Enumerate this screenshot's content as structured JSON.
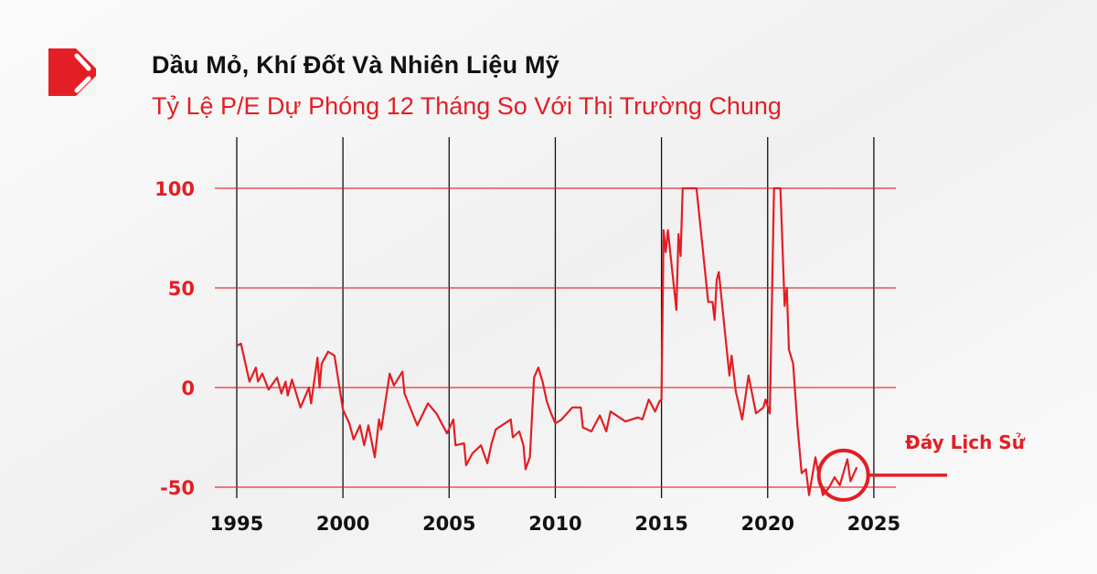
{
  "header": {
    "title": "Dầu Mỏ, Khí Đốt Và Nhiên Liệu Mỹ",
    "subtitle": "Tỷ Lệ P/E Dự Phóng 12 Tháng So Với Thị Trường Chung",
    "logo_icon": "red-square-slash-logo"
  },
  "colors": {
    "accent": "#e31e24",
    "text": "#111111",
    "background": "#f4f4f4"
  },
  "chart_data": {
    "type": "line",
    "title": "Dầu Mỏ, Khí Đốt Và Nhiên Liệu Mỹ",
    "subtitle": "Tỷ Lệ P/E Dự Phóng 12 Tháng So Với Thị Trường Chung",
    "xlabel": "",
    "ylabel": "",
    "xlim": [
      1994,
      2026
    ],
    "ylim": [
      -55,
      100
    ],
    "x_ticks": [
      "1995",
      "2000",
      "2005",
      "2010",
      "2015",
      "2020",
      "2025"
    ],
    "y_ticks": [
      "100",
      "50",
      "0",
      "-50"
    ],
    "grid": "horizontal red at y ticks, vertical black at x ticks",
    "annotation": {
      "label": "Đáy Lịch Sử",
      "x": 2023.7,
      "y": -44
    },
    "series": [
      {
        "color": "#e31e24",
        "points": [
          [
            1995.0,
            21
          ],
          [
            1995.2,
            22
          ],
          [
            1995.6,
            3
          ],
          [
            1995.9,
            10
          ],
          [
            1996.0,
            3
          ],
          [
            1996.2,
            7
          ],
          [
            1996.5,
            -1
          ],
          [
            1996.9,
            5
          ],
          [
            1997.1,
            -3
          ],
          [
            1997.3,
            3
          ],
          [
            1997.4,
            -4
          ],
          [
            1997.6,
            4
          ],
          [
            1998.0,
            -10
          ],
          [
            1998.4,
            0
          ],
          [
            1998.5,
            -8
          ],
          [
            1998.8,
            15
          ],
          [
            1998.9,
            0
          ],
          [
            1999.0,
            12
          ],
          [
            1999.3,
            18
          ],
          [
            1999.6,
            16
          ],
          [
            2000.0,
            -11
          ],
          [
            2000.3,
            -18
          ],
          [
            2000.5,
            -26
          ],
          [
            2000.8,
            -19
          ],
          [
            2001.0,
            -29
          ],
          [
            2001.2,
            -19
          ],
          [
            2001.5,
            -35
          ],
          [
            2001.7,
            -16
          ],
          [
            2001.8,
            -21
          ],
          [
            2002.2,
            7
          ],
          [
            2002.4,
            1
          ],
          [
            2002.8,
            8
          ],
          [
            2002.9,
            -3
          ],
          [
            2003.2,
            -11
          ],
          [
            2003.5,
            -19
          ],
          [
            2004.0,
            -8
          ],
          [
            2004.4,
            -13
          ],
          [
            2004.9,
            -23
          ],
          [
            2005.2,
            -16
          ],
          [
            2005.3,
            -29
          ],
          [
            2005.7,
            -28
          ],
          [
            2005.8,
            -39
          ],
          [
            2006.1,
            -33
          ],
          [
            2006.5,
            -29
          ],
          [
            2006.8,
            -38
          ],
          [
            2007.0,
            -28
          ],
          [
            2007.2,
            -21
          ],
          [
            2007.9,
            -16
          ],
          [
            2008.0,
            -25
          ],
          [
            2008.3,
            -22
          ],
          [
            2008.5,
            -29
          ],
          [
            2008.6,
            -41
          ],
          [
            2008.8,
            -35
          ],
          [
            2009.0,
            5
          ],
          [
            2009.2,
            10
          ],
          [
            2009.4,
            3
          ],
          [
            2009.6,
            -7
          ],
          [
            2009.8,
            -13
          ],
          [
            2010.0,
            -18
          ],
          [
            2010.3,
            -16
          ],
          [
            2010.8,
            -10
          ],
          [
            2011.2,
            -10
          ],
          [
            2011.3,
            -20
          ],
          [
            2011.7,
            -22
          ],
          [
            2012.1,
            -14
          ],
          [
            2012.4,
            -22
          ],
          [
            2012.6,
            -12
          ],
          [
            2013.3,
            -17
          ],
          [
            2013.9,
            -15
          ],
          [
            2014.1,
            -16
          ],
          [
            2014.4,
            -6
          ],
          [
            2014.7,
            -12
          ],
          [
            2014.9,
            -7
          ],
          [
            2015.0,
            -6
          ],
          [
            2015.1,
            79
          ],
          [
            2015.2,
            68
          ],
          [
            2015.3,
            79
          ],
          [
            2015.7,
            39
          ],
          [
            2015.8,
            77
          ],
          [
            2015.9,
            66
          ],
          [
            2016.0,
            100
          ],
          [
            2016.65,
            100
          ],
          [
            2017.2,
            43
          ],
          [
            2017.4,
            43
          ],
          [
            2017.5,
            34
          ],
          [
            2017.6,
            54
          ],
          [
            2017.7,
            58
          ],
          [
            2018.2,
            6
          ],
          [
            2018.3,
            16
          ],
          [
            2018.5,
            -2
          ],
          [
            2018.8,
            -16
          ],
          [
            2019.1,
            6
          ],
          [
            2019.45,
            -13
          ],
          [
            2019.8,
            -10
          ],
          [
            2019.9,
            -6
          ],
          [
            2020.1,
            -13
          ],
          [
            2020.3,
            100
          ],
          [
            2020.6,
            100
          ],
          [
            2020.8,
            41
          ],
          [
            2020.9,
            50
          ],
          [
            2021.0,
            19
          ],
          [
            2021.2,
            12
          ],
          [
            2021.4,
            -19
          ],
          [
            2021.6,
            -43
          ],
          [
            2021.8,
            -41
          ],
          [
            2021.95,
            -54
          ],
          [
            2022.25,
            -35
          ],
          [
            2022.4,
            -44
          ],
          [
            2022.6,
            -54
          ],
          [
            2022.9,
            -50
          ],
          [
            2023.15,
            -45
          ],
          [
            2023.4,
            -49
          ],
          [
            2023.75,
            -36
          ],
          [
            2023.9,
            -47
          ],
          [
            2024.2,
            -40
          ]
        ]
      }
    ]
  }
}
